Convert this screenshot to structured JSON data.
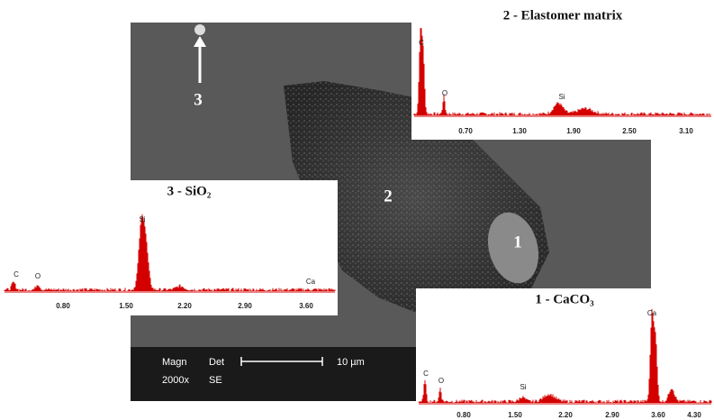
{
  "micrograph": {
    "labels": [
      "1",
      "2",
      "3"
    ],
    "scale_bar": {
      "magn_label": "Magn",
      "det_label": "Det",
      "length": "10 µm",
      "magn": "2000x",
      "det": "SE"
    }
  },
  "spectra": [
    {
      "title": "2 - Elastomer matrix",
      "ticks": [
        "0.70",
        "1.30",
        "1.90",
        "2.50",
        "3.10"
      ],
      "elements": [
        "C",
        "O",
        "Si"
      ]
    },
    {
      "title": "3 - SiO₂",
      "ticks": [
        "0.80",
        "1.50",
        "2.20",
        "2.90",
        "3.60"
      ],
      "elements": [
        "C",
        "O",
        "Si",
        "Ca"
      ]
    },
    {
      "title": "1 - CaCO₃",
      "ticks": [
        "0.80",
        "1.50",
        "2.20",
        "2.90",
        "3.60",
        "4.30"
      ],
      "elements": [
        "C",
        "O",
        "Si",
        "Ca"
      ]
    }
  ]
}
